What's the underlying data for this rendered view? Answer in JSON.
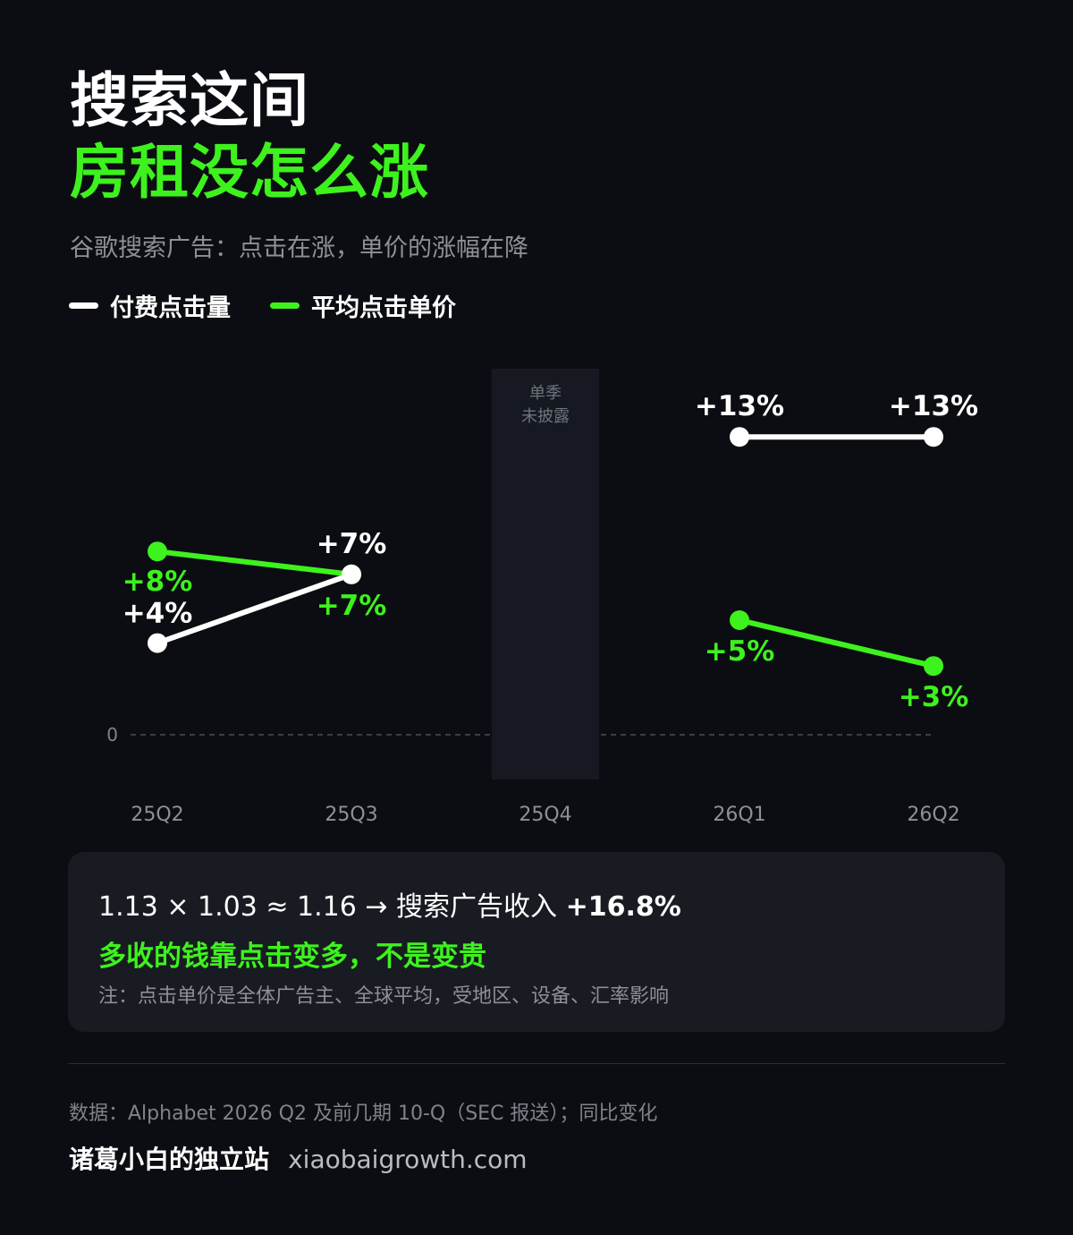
{
  "header": {
    "title_line1": "搜索这间",
    "title_line2": "房租没怎么涨",
    "subtitle": "谷歌搜索广告：点击在涨，单价的涨幅在降"
  },
  "colors": {
    "background": "#0b0d12",
    "paid_clicks": "#ffffff",
    "cost_per_click": "#3df21d",
    "highlight_green": "#3df21d",
    "muted_text": "#8d9096",
    "card_background": "#181b22",
    "gap_band": "#161922"
  },
  "chart_data": {
    "type": "line",
    "title": "",
    "xlabel": "",
    "ylabel": "",
    "categories": [
      "25Q2",
      "25Q3",
      "25Q4",
      "26Q1",
      "26Q2"
    ],
    "y_unit": "%",
    "ylim": [
      0,
      16
    ],
    "y_ticks": [
      "0"
    ],
    "grid": false,
    "baseline": "dashed line at 0",
    "legend_position": "top-left",
    "series": [
      {
        "name": "付费点击量",
        "color": "#ffffff",
        "values": [
          4,
          7,
          null,
          13,
          13
        ],
        "labels": [
          "+4%",
          "+7%",
          null,
          "+13%",
          "+13%"
        ]
      },
      {
        "name": "平均点击单价",
        "color": "#3df21d",
        "values": [
          8,
          7,
          null,
          5,
          3
        ],
        "labels": [
          "+8%",
          "+7%",
          null,
          "+5%",
          "+3%"
        ]
      }
    ],
    "gap": {
      "category": "25Q4",
      "label_line1": "单季",
      "label_line2": "未披露"
    }
  },
  "summary": {
    "formula": "1.13 × 1.03 ≈ 1.16 → 搜索广告收入 ",
    "formula_strong": "+16.8%",
    "conclusion": "多收的钱靠点击变多，不是变贵",
    "note": "注：点击单价是全体广告主、全球平均，受地区、设备、汇率影响"
  },
  "footer": {
    "source": "数据：Alphabet 2026 Q2 及前几期 10-Q（SEC 报送）；同比变化",
    "brand": "诸葛小白的独立站",
    "url": "xiaobaigrowth.com"
  }
}
